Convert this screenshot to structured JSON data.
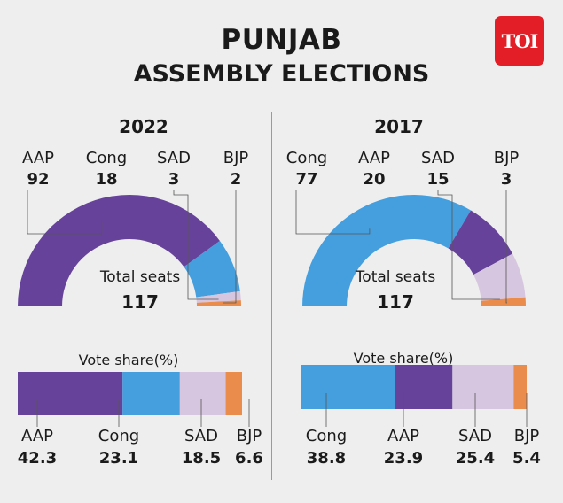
{
  "header": {
    "title": "PUNJAB",
    "subtitle": "ASSEMBLY ELECTIONS",
    "logo_text": "TOI"
  },
  "colors": {
    "AAP": "#67429a",
    "Cong": "#459fde",
    "SAD": "#d7c6df",
    "BJP": "#ea8c4c",
    "background": "#eeeeee",
    "logo": "#e41e26"
  },
  "chart_data": [
    {
      "type": "pie",
      "variant": "semicircle-donut",
      "title": "2022",
      "center_label": "Total seats",
      "total": "117",
      "categories": [
        "AAP",
        "Cong",
        "SAD",
        "BJP"
      ],
      "values": [
        92,
        18,
        3,
        2
      ]
    },
    {
      "type": "pie",
      "variant": "semicircle-donut",
      "title": "2017",
      "center_label": "Total seats",
      "total": "117",
      "categories": [
        "Cong",
        "AAP",
        "SAD",
        "BJP"
      ],
      "values": [
        77,
        20,
        15,
        3
      ]
    },
    {
      "type": "bar",
      "variant": "stacked-horizontal",
      "title": "Vote share(%)",
      "year": "2022",
      "categories": [
        "AAP",
        "Cong",
        "SAD",
        "BJP"
      ],
      "values": [
        42.3,
        23.1,
        18.5,
        6.6
      ],
      "labels": [
        "42.3",
        "23.1",
        "18.5",
        "6.6"
      ]
    },
    {
      "type": "bar",
      "variant": "stacked-horizontal",
      "title": "Vote share(%)",
      "year": "2017",
      "categories": [
        "Cong",
        "AAP",
        "SAD",
        "BJP"
      ],
      "values": [
        38.8,
        23.9,
        25.4,
        5.4
      ],
      "labels": [
        "38.8",
        "23.9",
        "25.4",
        "5.4"
      ]
    }
  ]
}
